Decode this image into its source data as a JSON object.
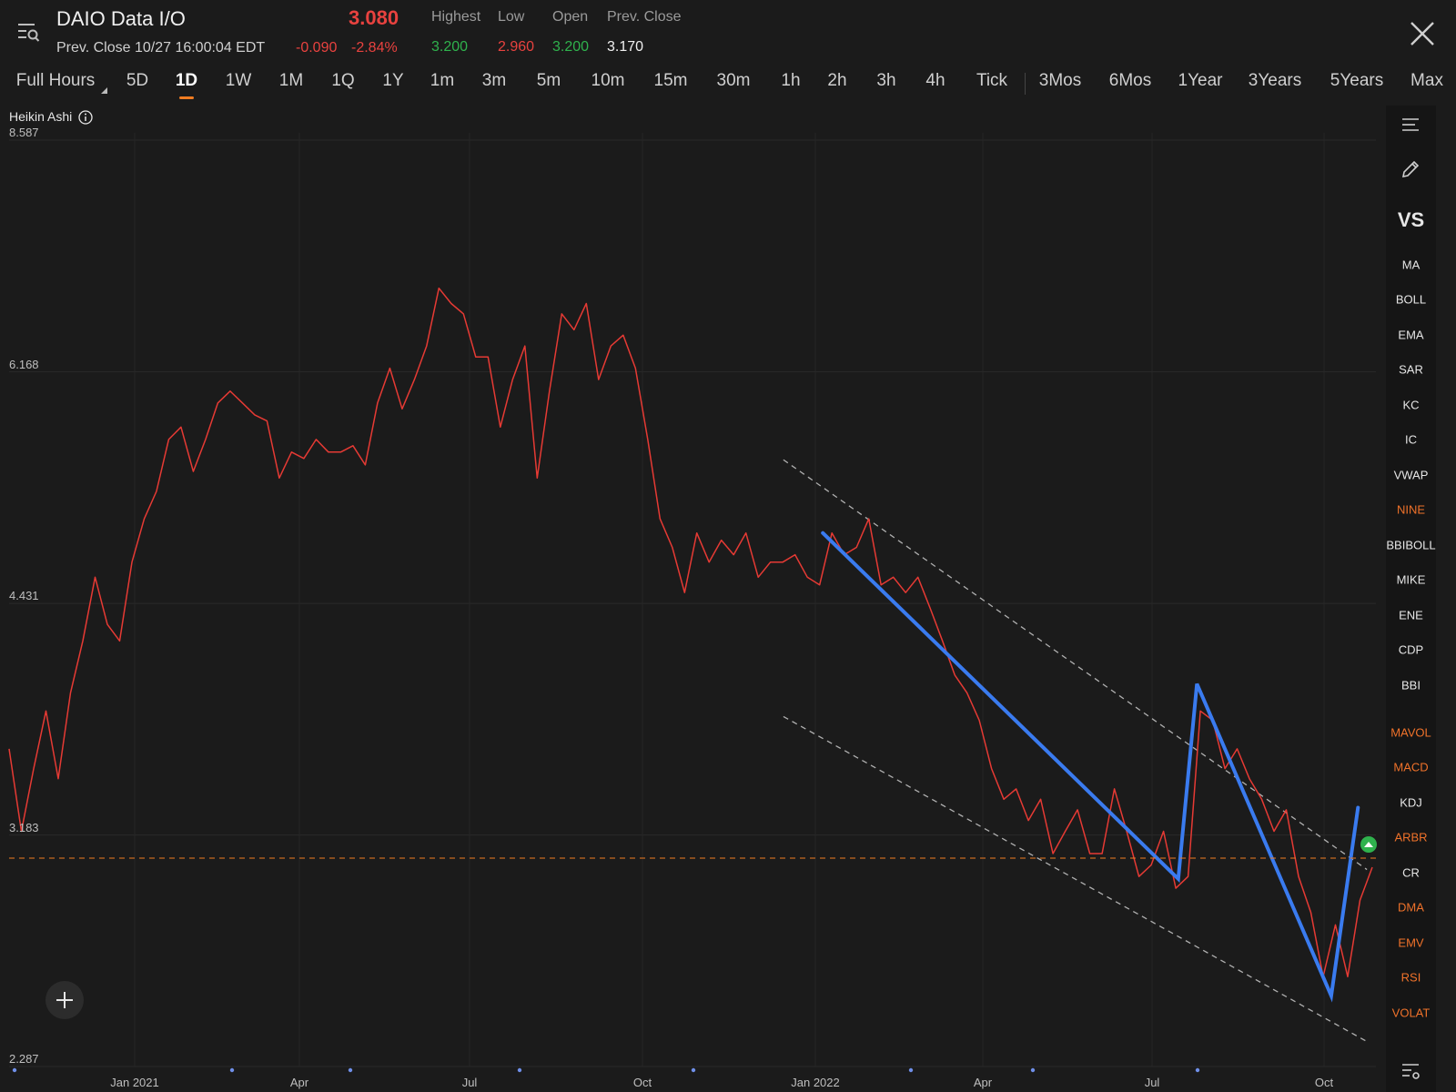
{
  "header": {
    "title": "DAIO Data I/O",
    "price": "3.080",
    "prev_close_line": "Prev. Close 10/27 16:00:04 EDT",
    "change": "-0.090",
    "change_pct": "-2.84%",
    "stats": {
      "labels": [
        "Highest",
        "Low",
        "Open",
        "Prev. Close"
      ],
      "values": [
        "3.200",
        "2.960",
        "3.200",
        "3.170"
      ]
    }
  },
  "tabs": [
    "Full Hours",
    "5D",
    "1D",
    "1W",
    "1M",
    "1Q",
    "1Y",
    "1m",
    "3m",
    "5m",
    "10m",
    "15m",
    "30m",
    "1h",
    "2h",
    "3h",
    "4h",
    "Tick",
    "3Mos",
    "6Mos",
    "1Year",
    "3Years",
    "5Years",
    "Max"
  ],
  "active_tab": "1D",
  "indicator_label": "Heikin Ashi",
  "sidebar": {
    "items": [
      "VS",
      "MA",
      "BOLL",
      "EMA",
      "SAR",
      "KC",
      "IC",
      "VWAP",
      "NINE",
      "BBIBOLL",
      "MIKE",
      "ENE",
      "CDP",
      "BBI",
      "MAVOL",
      "MACD",
      "KDJ",
      "ARBR",
      "CR",
      "DMA",
      "EMV",
      "RSI",
      "VOLAT"
    ],
    "orange_items": [
      "NINE",
      "MAVOL",
      "MACD",
      "ARBR",
      "DMA",
      "EMV",
      "RSI",
      "VOLAT"
    ]
  },
  "colors": {
    "price_line": "#e63a34",
    "pattern": "#3a7bef",
    "channel": "#b0b0b0",
    "ref_line": "#f07c22",
    "accent": "#f07c22"
  },
  "chart_data": {
    "type": "line",
    "title": "",
    "xlabel": "",
    "ylabel": "",
    "y_ticks": [
      "8.587",
      "6.168",
      "4.431",
      "3.183",
      "2.287"
    ],
    "x_ticks": [
      "Jan 2021",
      "Apr",
      "Jul",
      "Oct",
      "Jan 2022",
      "Apr",
      "Jul",
      "Oct"
    ],
    "ylim": [
      2.287,
      8.587
    ],
    "y_scale": "log",
    "reference_line": 3.08,
    "series": [
      {
        "values": [
          3.6,
          3.2,
          3.5,
          3.8,
          3.45,
          3.9,
          4.2,
          4.6,
          4.3,
          4.2,
          4.7,
          5.0,
          5.2,
          5.6,
          5.7,
          5.35,
          5.6,
          5.9,
          6.0,
          5.9,
          5.8,
          5.75,
          5.3,
          5.5,
          5.45,
          5.6,
          5.5,
          5.5,
          5.55,
          5.4,
          5.9,
          6.2,
          5.85,
          6.1,
          6.4,
          6.95,
          6.8,
          6.7,
          6.3,
          6.3,
          5.7,
          6.1,
          6.4,
          5.3,
          6.0,
          6.7,
          6.55,
          6.8,
          6.1,
          6.4,
          6.5,
          6.2,
          5.6,
          5.0,
          4.8,
          4.5,
          4.9,
          4.7,
          4.85,
          4.75,
          4.9,
          4.6,
          4.7,
          4.7,
          4.75,
          4.6,
          4.55,
          4.9,
          4.75,
          4.8,
          5.0,
          4.55,
          4.6,
          4.5,
          4.6,
          4.4,
          4.2,
          4.0,
          3.9,
          3.75,
          3.5,
          3.35,
          3.4,
          3.25,
          3.35,
          3.1,
          3.2,
          3.3,
          3.1,
          3.1,
          3.4,
          3.2,
          3.0,
          3.05,
          3.2,
          2.95,
          3.0,
          3.8,
          3.75,
          3.5,
          3.6,
          3.45,
          3.35,
          3.2,
          3.3,
          3.0,
          2.85,
          2.6,
          2.8,
          2.6,
          2.9,
          3.04
        ]
      }
    ],
    "channel_upper": {
      "x": [
        "2021-12-15",
        "2022-10-25"
      ],
      "y": [
        5.44,
        3.03
      ]
    },
    "channel_lower": {
      "x": [
        "2021-12-15",
        "2022-10-25"
      ],
      "y": [
        3.77,
        2.37
      ]
    },
    "pattern_line": {
      "x": [
        "2022-01-05",
        "2022-07-15",
        "2022-07-25",
        "2022-10-05",
        "2022-10-20"
      ],
      "y": [
        4.9,
        2.99,
        3.95,
        2.53,
        3.31
      ]
    }
  }
}
